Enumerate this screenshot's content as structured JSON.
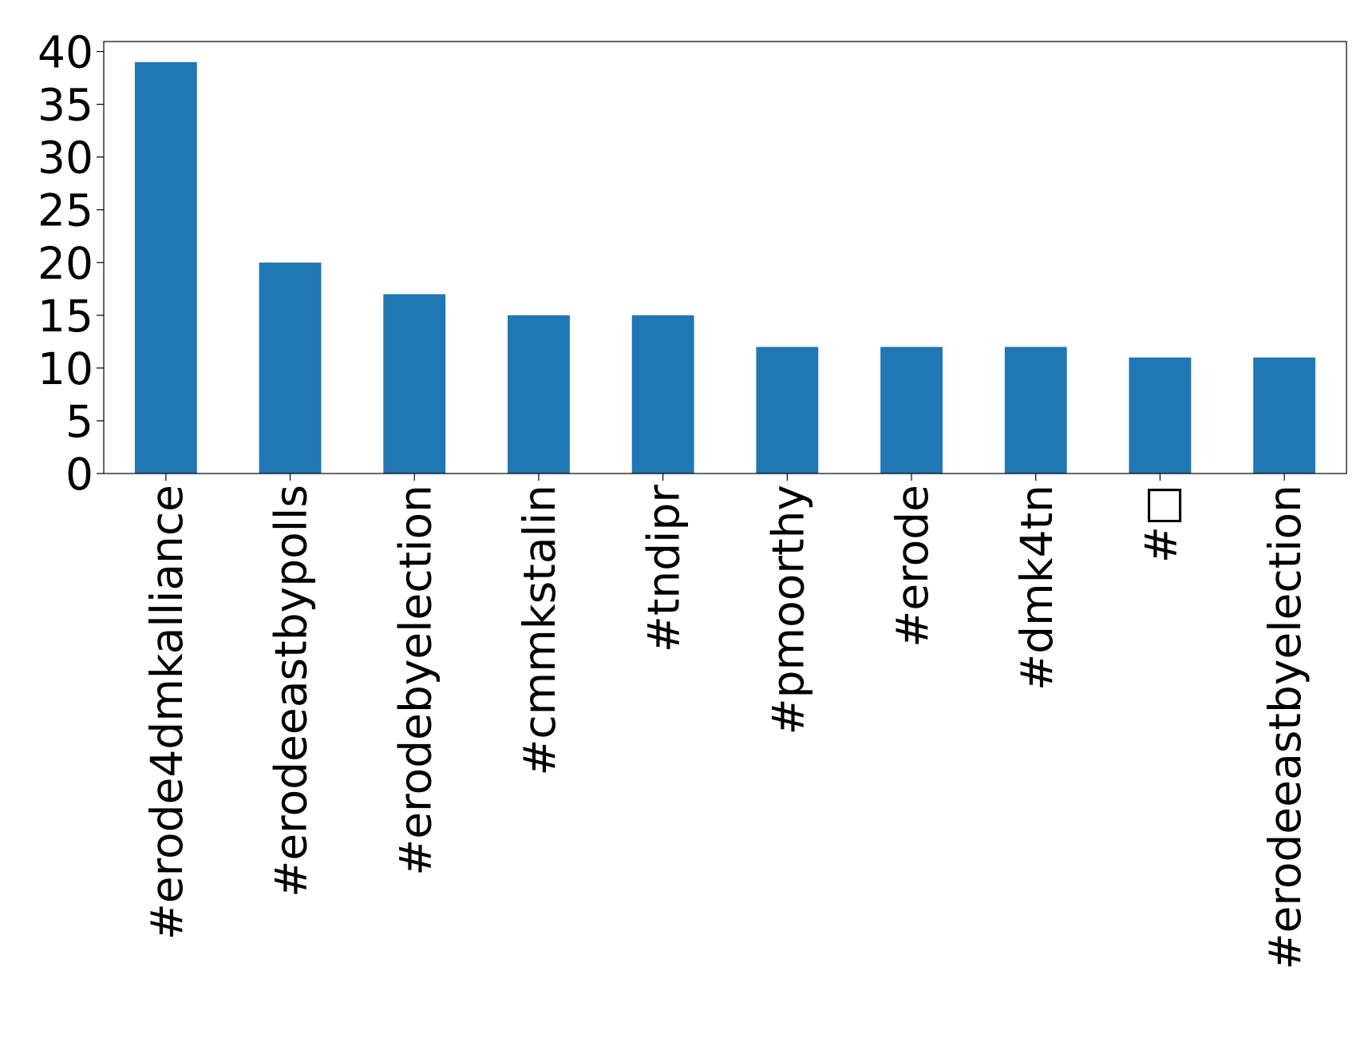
{
  "chart_data": {
    "type": "bar",
    "categories": [
      "#erode4dmkalliance",
      "#erodeeastbypolls",
      "#erodebyelection",
      "#cmmkstalin",
      "#tndipr",
      "#pmoorthy",
      "#erode",
      "#dmk4tn",
      "#□",
      "#erodeeastbyelection"
    ],
    "values": [
      39,
      20,
      17,
      15,
      15,
      12,
      12,
      12,
      11,
      11
    ],
    "color": "#1f77b4",
    "ylim": [
      0,
      40.95
    ],
    "yticks": [
      0,
      5,
      10,
      15,
      20,
      25,
      30,
      35,
      40
    ],
    "grid": false
  }
}
